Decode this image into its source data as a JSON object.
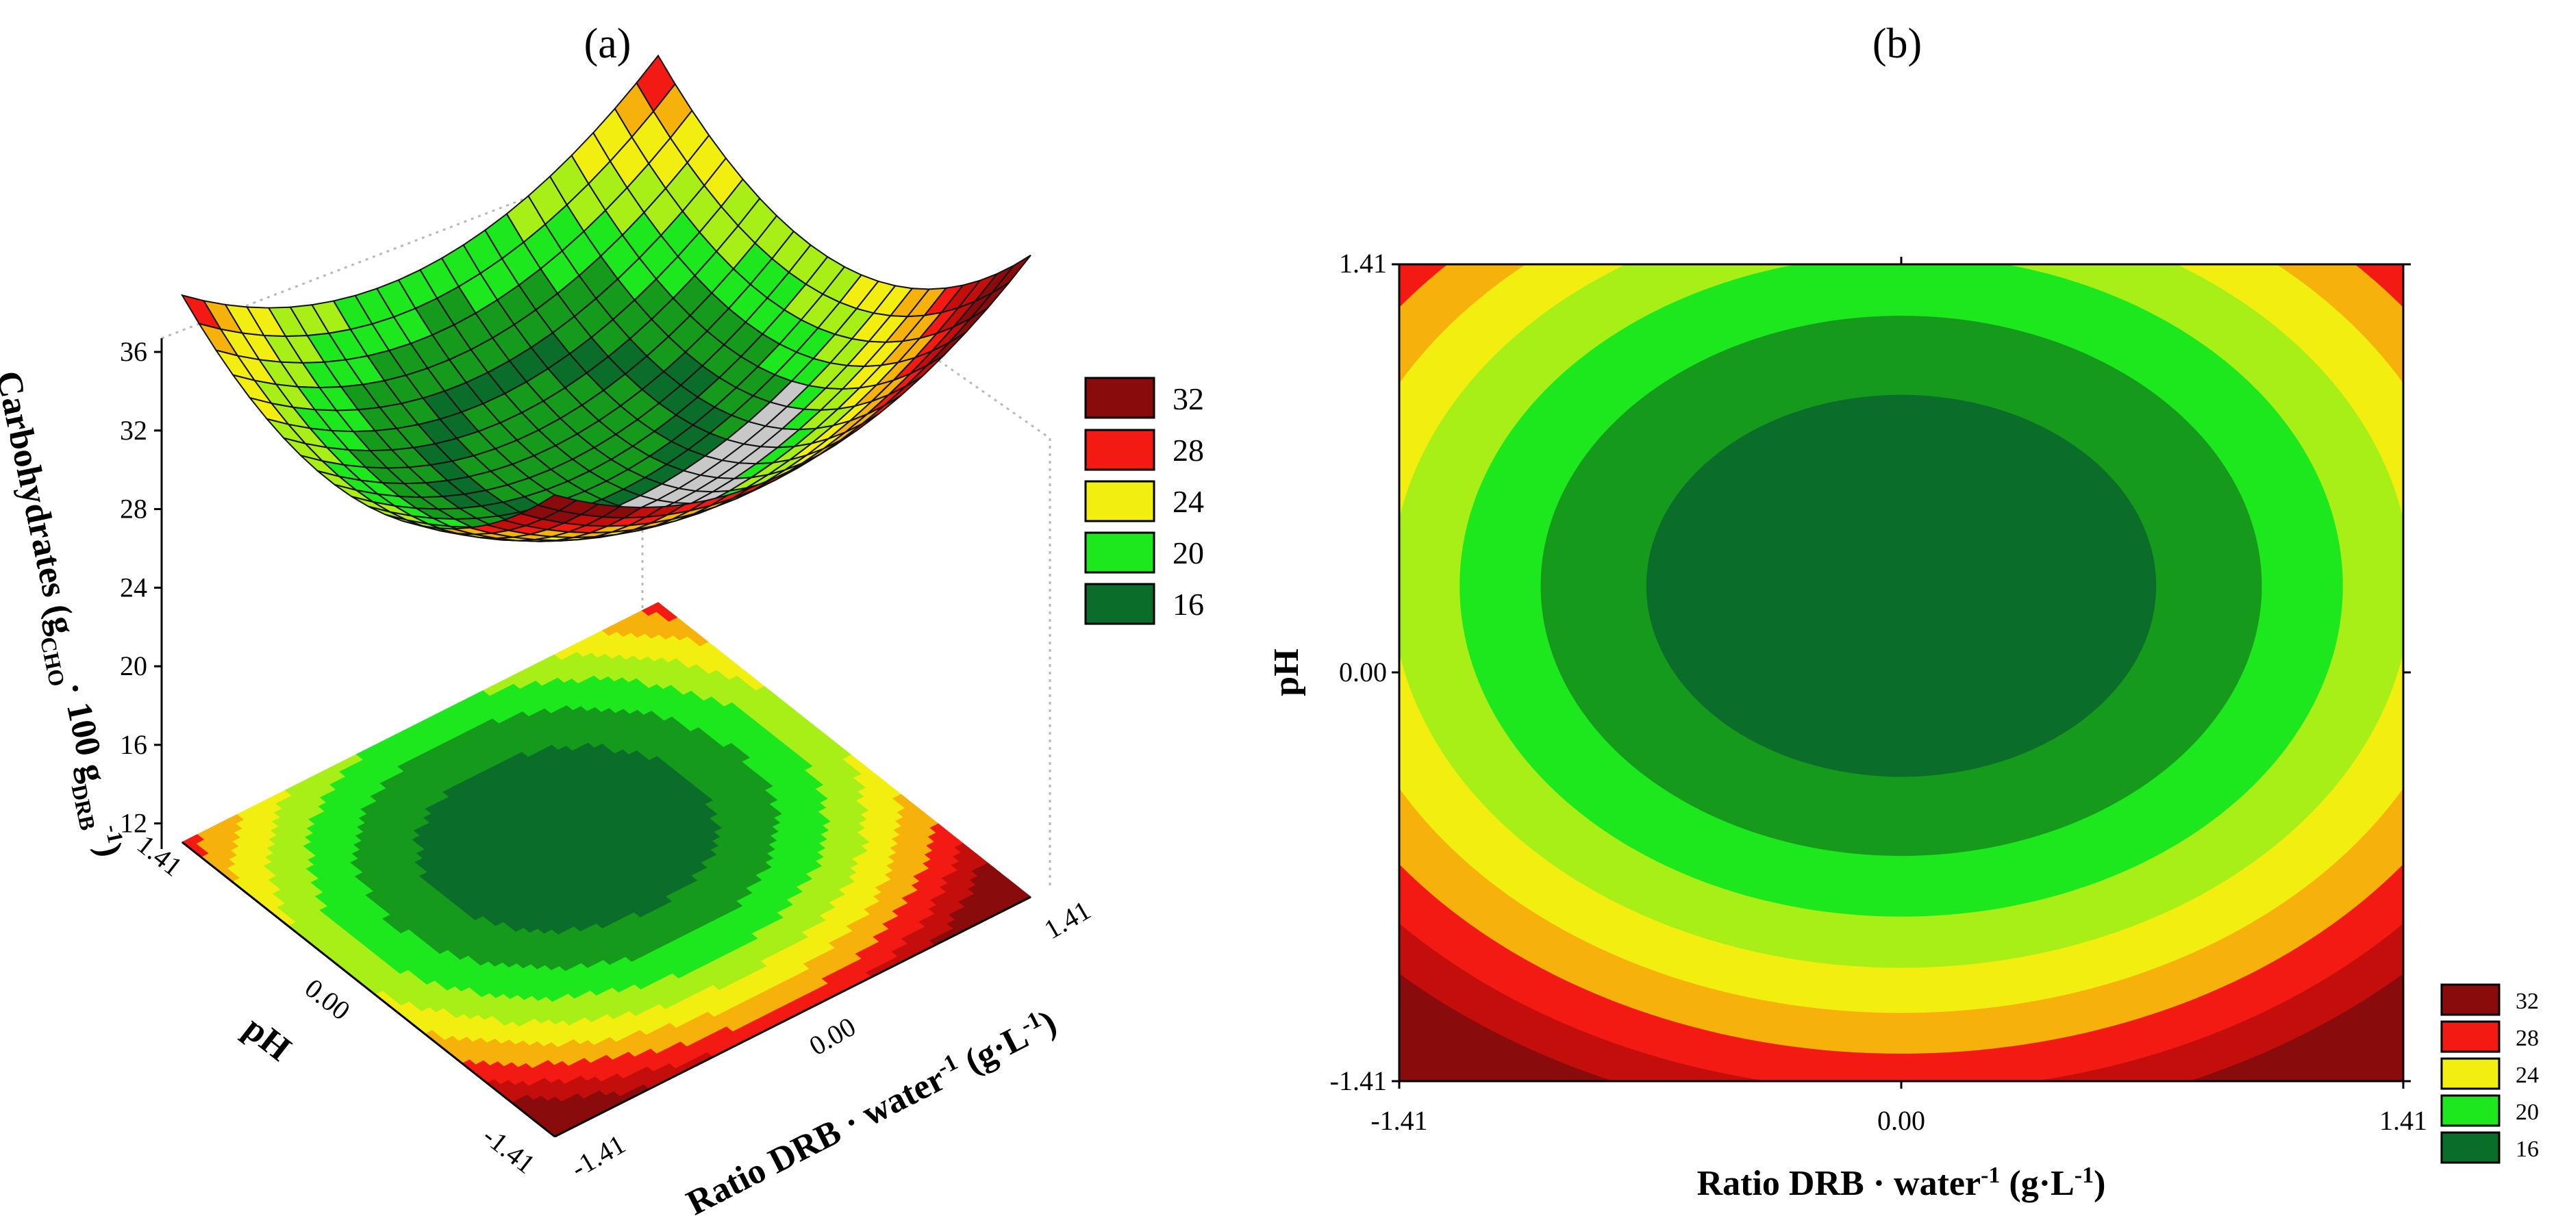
{
  "panels": {
    "a_label": "(a)",
    "b_label": "(b)"
  },
  "colors": {
    "c16": "#0a6e2a",
    "c18": "#159a1c",
    "c20": "#1de81d",
    "c22": "#a8ef18",
    "c24": "#f2ef10",
    "c26": "#f6b10a",
    "c28": "#f21a12",
    "c30": "#c40e0c",
    "c32": "#8a0b0b"
  },
  "chart_data": [
    {
      "id": "a",
      "type": "surface3d",
      "title": "(a)",
      "xlabel": "Ratio DRB · water⁻¹ (g·L⁻¹)",
      "ylabel": "pH",
      "zlabel": "Carbohydrates (gCHO· 100 gDRB⁻¹)",
      "z_ticks": [
        "36",
        "32",
        "28",
        "24",
        "20",
        "16",
        "12"
      ],
      "x_ticks": [
        "-1.41",
        "0.00",
        "1.41"
      ],
      "y_ticks": [
        "1.41",
        "0.00",
        "-1.41"
      ],
      "zlim": [
        10,
        36
      ],
      "surface_min": 16,
      "legend": [
        {
          "label": "32",
          "value": 32
        },
        {
          "label": "28",
          "value": 28
        },
        {
          "label": "24",
          "value": 24
        },
        {
          "label": "20",
          "value": 20
        },
        {
          "label": "16",
          "value": 16
        }
      ]
    },
    {
      "id": "b",
      "type": "contour",
      "title": "(b)",
      "xlabel": "Ratio DRB · water⁻¹ (g·L⁻¹)",
      "ylabel": "pH",
      "x_ticks": [
        "-1.41",
        "0.00",
        "1.41"
      ],
      "y_ticks": [
        "1.41",
        "0.00",
        "-1.41"
      ],
      "xlim": [
        -1.41,
        1.41
      ],
      "ylim": [
        -1.41,
        1.41
      ],
      "optimum": {
        "x": 0.0,
        "y": 0.3
      },
      "levels": [
        17,
        18,
        19,
        20,
        21,
        22,
        23,
        24,
        25,
        26,
        27,
        28,
        29,
        30,
        31,
        32,
        33
      ],
      "legend": [
        {
          "label": "32",
          "value": 32
        },
        {
          "label": "28",
          "value": 28
        },
        {
          "label": "24",
          "value": 24
        },
        {
          "label": "20",
          "value": 20
        },
        {
          "label": "16",
          "value": 16
        }
      ]
    }
  ]
}
